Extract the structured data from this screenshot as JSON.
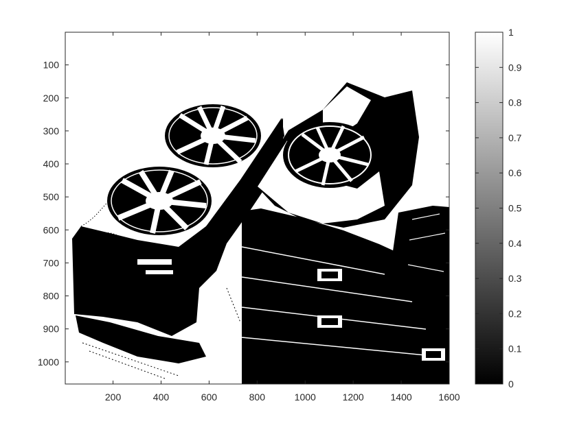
{
  "chart_data": {
    "type": "heatmap",
    "title": "",
    "xlabel": "",
    "ylabel": "",
    "xlim": [
      1,
      1600
    ],
    "ylim": [
      1,
      1067
    ],
    "y_direction": "reversed",
    "grid": false,
    "x_ticks": [
      200,
      400,
      600,
      800,
      1000,
      1200,
      1400,
      1600
    ],
    "y_ticks": [
      100,
      200,
      300,
      400,
      500,
      600,
      700,
      800,
      900,
      1000
    ],
    "image": {
      "description_of_content": "binarized photograph of graphics cards",
      "value_range": [
        0,
        1
      ],
      "colormap": "gray"
    },
    "colorbar": {
      "range": [
        0,
        1
      ],
      "ticks": [
        0,
        0.1,
        0.2,
        0.3,
        0.4,
        0.5,
        0.6,
        0.7,
        0.8,
        0.9,
        1
      ],
      "placement": "right"
    }
  }
}
